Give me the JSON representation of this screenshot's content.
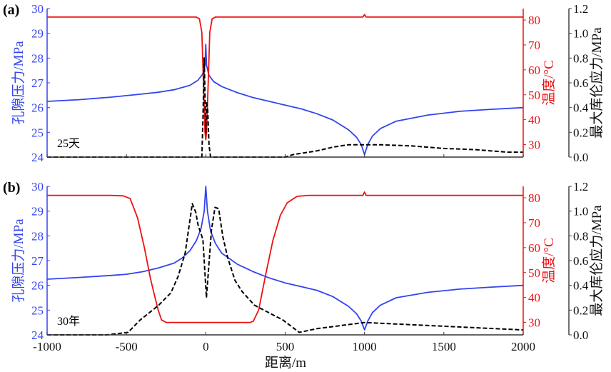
{
  "chart_data": {
    "type": "line",
    "xlabel": "距离/m",
    "xlim": [
      -1000,
      2000
    ],
    "xticks": [
      -1000,
      -500,
      0,
      500,
      1000,
      1500,
      2000
    ],
    "axes": {
      "left": {
        "label": "孔隙压力/MPa",
        "lim": [
          24,
          30
        ],
        "ticks": [
          24,
          25,
          26,
          27,
          28,
          29,
          30
        ],
        "color": "#3344ee"
      },
      "right1": {
        "label": "温度/°C",
        "lim": [
          25,
          84.6
        ],
        "ticks": [
          30,
          40,
          50,
          60,
          70,
          80
        ],
        "color": "#ee1111"
      },
      "right2": {
        "label": "最大库伦应力/MPa",
        "lim": [
          0,
          1.2
        ],
        "ticks": [
          "0.0",
          "0.2",
          "0.4",
          "0.6",
          "0.8",
          "1.0",
          "1.2"
        ],
        "color": "#000000"
      }
    },
    "panels": [
      {
        "tag": "(a)",
        "annotation": "25天",
        "series": [
          {
            "name": "孔隙压力",
            "axis": "left",
            "color": "#3344ee",
            "style": "solid",
            "x": [
              -1000,
              -800,
              -600,
              -400,
              -300,
              -200,
              -100,
              -50,
              -20,
              -5,
              0,
              5,
              20,
              50,
              100,
              200,
              300,
              400,
              500,
              600,
              700,
              800,
              900,
              950,
              980,
              1000,
              1020,
              1050,
              1100,
              1200,
              1400,
              1600,
              1800,
              2000
            ],
            "y": [
              26.25,
              26.32,
              26.42,
              26.55,
              26.62,
              26.72,
              26.9,
              27.1,
              27.35,
              27.7,
              28.55,
              27.7,
              27.3,
              27.05,
              26.85,
              26.6,
              26.4,
              26.25,
              26.1,
              25.95,
              25.75,
              25.5,
              25.1,
              24.8,
              24.5,
              24.1,
              24.5,
              24.85,
              25.15,
              25.45,
              25.7,
              25.85,
              25.93,
              26.0
            ]
          },
          {
            "name": "温度",
            "axis": "right1",
            "color": "#ee1111",
            "style": "solid",
            "x": [
              -1000,
              -60,
              -40,
              -25,
              -15,
              -5,
              0,
              5,
              15,
              25,
              40,
              60,
              990,
              1000,
              1010,
              2000
            ],
            "y": [
              81.2,
              81.2,
              80.5,
              75,
              55,
              35,
              32,
              35,
              55,
              75,
              80.5,
              81.2,
              81.2,
              82.2,
              81.2,
              81.2
            ]
          },
          {
            "name": "最大库伦应力",
            "axis": "right2",
            "color": "#000000",
            "style": "dashed",
            "x": [
              -1000,
              -25,
              -18,
              -10,
              -5,
              0,
              5,
              12,
              20,
              30,
              500,
              550,
              600,
              700,
              800,
              900,
              1000,
              1100,
              1300,
              1500,
              1700,
              1900,
              2000
            ],
            "y": [
              0,
              0,
              0.3,
              0.8,
              0.5,
              0.2,
              0.45,
              0.38,
              0.1,
              0,
              0,
              0.02,
              0.03,
              0.05,
              0.08,
              0.1,
              0.1,
              0.1,
              0.09,
              0.07,
              0.06,
              0.04,
              0.04
            ]
          }
        ]
      },
      {
        "tag": "(b)",
        "annotation": "30年",
        "series": [
          {
            "name": "孔隙压力",
            "axis": "left",
            "color": "#3344ee",
            "style": "solid",
            "x": [
              -1000,
              -800,
              -600,
              -500,
              -400,
              -300,
              -200,
              -150,
              -100,
              -60,
              -30,
              -10,
              0,
              10,
              30,
              60,
              100,
              200,
              300,
              400,
              500,
              600,
              700,
              800,
              900,
              950,
              980,
              1000,
              1020,
              1050,
              1100,
              1200,
              1400,
              1600,
              1800,
              2000
            ],
            "y": [
              26.25,
              26.32,
              26.4,
              26.45,
              26.55,
              26.7,
              26.9,
              27.1,
              27.4,
              27.8,
              28.3,
              29.0,
              30.0,
              29.0,
              28.2,
              27.7,
              27.3,
              26.85,
              26.55,
              26.3,
              26.1,
              25.95,
              25.8,
              25.55,
              25.15,
              24.85,
              24.55,
              24.2,
              24.55,
              24.9,
              25.2,
              25.5,
              25.72,
              25.85,
              25.93,
              26.0
            ]
          },
          {
            "name": "温度",
            "axis": "right1",
            "color": "#ee1111",
            "style": "solid",
            "x": [
              -1000,
              -600,
              -520,
              -477,
              -430,
              -387,
              -350,
              -324,
              -300,
              -279,
              -250,
              280,
              300,
              333,
              380,
              423,
              470,
              513,
              575,
              650,
              990,
              1000,
              1010,
              2000
            ],
            "y": [
              81,
              81,
              80.8,
              79.7,
              72,
              60,
              48,
              41,
              35,
              31,
              30,
              30,
              30.5,
              35,
              50,
              63,
              73,
              78,
              80.6,
              81,
              81,
              82.3,
              81,
              81
            ]
          },
          {
            "name": "最大库伦应力",
            "axis": "right2",
            "color": "#000000",
            "style": "dashed",
            "x": [
              -1000,
              -625,
              -490,
              -414,
              -355,
              -297,
              -220,
              -175,
              -130,
              -85,
              -63,
              -49,
              -18,
              4,
              36,
              58,
              81,
              108,
              139,
              184,
              229,
              306,
              396,
              486,
              589,
              700,
              1000,
              1500,
              2000
            ],
            "y": [
              0,
              0,
              0.02,
              0.12,
              0.18,
              0.24,
              0.34,
              0.47,
              0.66,
              1.06,
              0.99,
              0.89,
              0.77,
              0.3,
              0.85,
              1.03,
              1.02,
              0.79,
              0.62,
              0.44,
              0.35,
              0.24,
              0.18,
              0.12,
              0.02,
              0.05,
              0.1,
              0.07,
              0.04
            ]
          }
        ]
      }
    ]
  }
}
